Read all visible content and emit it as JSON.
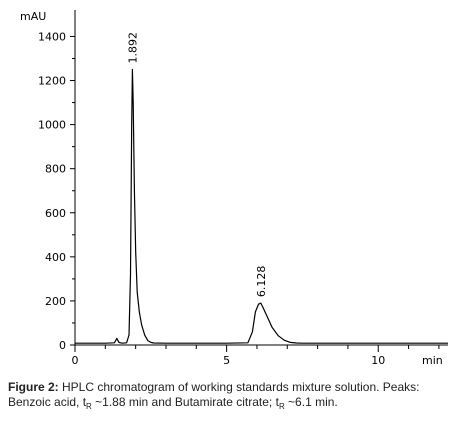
{
  "chart_data": {
    "type": "line",
    "title": "",
    "ylabel": "mAU",
    "xlabel": "min",
    "xlim": [
      0,
      12.3
    ],
    "ylim": [
      0,
      1520
    ],
    "x_ticks": [
      "0",
      "5",
      "10"
    ],
    "y_ticks": [
      "0",
      "200",
      "400",
      "600",
      "800",
      "1000",
      "1200",
      "1400"
    ],
    "grid": false,
    "series": [
      {
        "x": [
          0,
          1.0,
          1.3,
          1.38,
          1.45,
          1.55,
          1.7,
          1.78,
          1.83,
          1.87,
          1.892,
          1.92,
          1.96,
          2.0,
          2.05,
          2.12,
          2.2,
          2.3,
          2.4,
          2.5,
          2.6,
          3.0,
          4.0,
          5.0,
          5.7,
          5.85,
          5.95,
          6.05,
          6.128,
          6.2,
          6.35,
          6.5,
          6.7,
          6.9,
          7.1,
          7.3,
          7.5,
          8.0,
          9.0,
          10.0,
          11.0,
          12.3
        ],
        "y": [
          8,
          8,
          10,
          30,
          12,
          8,
          10,
          45,
          320,
          1000,
          1250,
          1100,
          700,
          420,
          240,
          150,
          90,
          45,
          20,
          12,
          9,
          8,
          8,
          8,
          10,
          60,
          150,
          185,
          190,
          170,
          125,
          80,
          42,
          22,
          12,
          9,
          8,
          8,
          8,
          8,
          8,
          8
        ]
      }
    ],
    "annotations": [
      {
        "x": 1.892,
        "y": 1250,
        "text": "1.892"
      },
      {
        "x": 6.128,
        "y": 190,
        "text": "6.128"
      }
    ]
  },
  "caption": {
    "label": "Figure 2:",
    "text_1": " HPLC chromatogram of working standards mixture solution. Peaks: Benzoic acid, t",
    "sub_1": "R",
    "text_2": " ~1.88 min and Butamirate citrate; t",
    "sub_2": "R",
    "text_3": " ~6.1 min."
  }
}
